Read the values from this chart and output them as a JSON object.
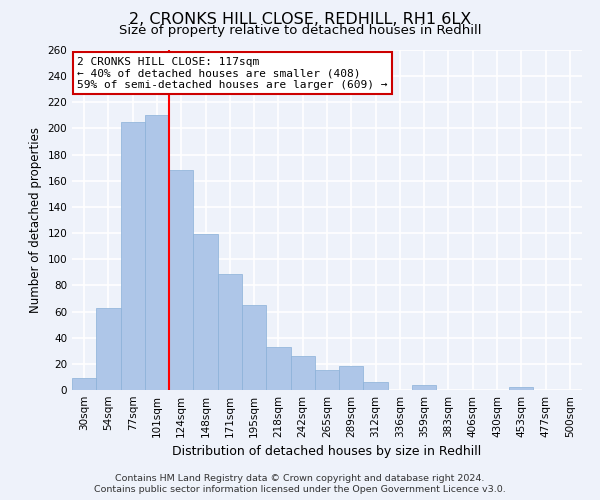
{
  "title": "2, CRONKS HILL CLOSE, REDHILL, RH1 6LX",
  "subtitle": "Size of property relative to detached houses in Redhill",
  "xlabel": "Distribution of detached houses by size in Redhill",
  "ylabel": "Number of detached properties",
  "bar_labels": [
    "30sqm",
    "54sqm",
    "77sqm",
    "101sqm",
    "124sqm",
    "148sqm",
    "171sqm",
    "195sqm",
    "218sqm",
    "242sqm",
    "265sqm",
    "289sqm",
    "312sqm",
    "336sqm",
    "359sqm",
    "383sqm",
    "406sqm",
    "430sqm",
    "453sqm",
    "477sqm",
    "500sqm"
  ],
  "bar_values": [
    9,
    63,
    205,
    210,
    168,
    119,
    89,
    65,
    33,
    26,
    15,
    18,
    6,
    0,
    4,
    0,
    0,
    0,
    2,
    0,
    0
  ],
  "bar_color": "#aec6e8",
  "bar_edge_color": "#8ab0d8",
  "vline_color": "red",
  "vline_x": 3.5,
  "annotation_title": "2 CRONKS HILL CLOSE: 117sqm",
  "annotation_line1": "← 40% of detached houses are smaller (408)",
  "annotation_line2": "59% of semi-detached houses are larger (609) →",
  "annotation_box_facecolor": "white",
  "annotation_box_edgecolor": "#cc0000",
  "ylim": [
    0,
    260
  ],
  "yticks": [
    0,
    20,
    40,
    60,
    80,
    100,
    120,
    140,
    160,
    180,
    200,
    220,
    240,
    260
  ],
  "footer_line1": "Contains HM Land Registry data © Crown copyright and database right 2024.",
  "footer_line2": "Contains public sector information licensed under the Open Government Licence v3.0.",
  "background_color": "#eef2fa",
  "grid_color": "white",
  "title_fontsize": 11.5,
  "subtitle_fontsize": 9.5,
  "xlabel_fontsize": 9,
  "ylabel_fontsize": 8.5,
  "tick_fontsize": 7.5,
  "annotation_fontsize": 8,
  "footer_fontsize": 6.8
}
